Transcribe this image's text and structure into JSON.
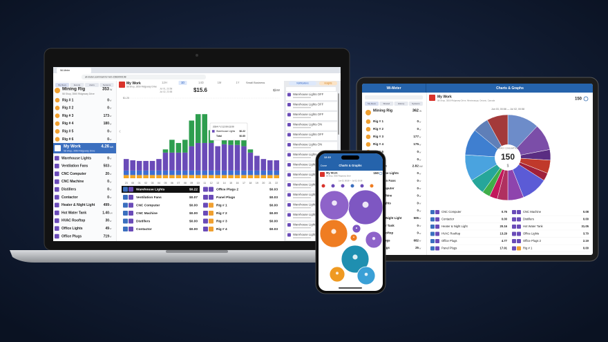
{
  "laptop": {
    "tab_title": "Wi-Meter",
    "url": "wi-meter.com/main?u=wm-1583090198",
    "nav": [
      "My Devs",
      "Events",
      "Alerts",
      "Systems"
    ],
    "rig": {
      "name": "Mining Rig",
      "address": "58 Shop, 3550 Ridgeway Drive",
      "value": "353",
      "unit": "W"
    },
    "rigs": [
      {
        "name": "Rig # 1",
        "value": "0",
        "unit": "W"
      },
      {
        "name": "Rig # 2",
        "value": "0",
        "unit": "W"
      },
      {
        "name": "Rig # 3",
        "value": "173",
        "unit": "W"
      },
      {
        "name": "Rig # 4",
        "value": "180",
        "unit": "W"
      },
      {
        "name": "Rig # 5",
        "value": "0",
        "unit": "W"
      },
      {
        "name": "Rig # 6",
        "value": "0",
        "unit": "W"
      }
    ],
    "site": {
      "name": "My Work",
      "address": "58 Shop, 3550 Ridgeway Drive",
      "value": "4.26",
      "unit": "kW"
    },
    "devices": [
      {
        "name": "Warehouse Lights",
        "value": "0",
        "unit": "W"
      },
      {
        "name": "Ventilation Fans",
        "value": "503",
        "unit": "W"
      },
      {
        "name": "CNC Computer",
        "value": "20",
        "unit": "W"
      },
      {
        "name": "CNC Machine",
        "value": "0",
        "unit": "W"
      },
      {
        "name": "Distillers",
        "value": "0",
        "unit": "W"
      },
      {
        "name": "Contactor",
        "value": "0",
        "unit": "W"
      },
      {
        "name": "Heater & Night Light",
        "value": "499",
        "unit": "W"
      },
      {
        "name": "Hot Water Tank",
        "value": "1.40",
        "unit": "kW"
      },
      {
        "name": "HVAC Rooftop",
        "value": "30",
        "unit": "W"
      },
      {
        "name": "Office Lights",
        "value": "49",
        "unit": "W"
      },
      {
        "name": "Office Plugs",
        "value": "719",
        "unit": "W"
      }
    ],
    "header": {
      "title": "My Work",
      "address": "58 Shop, 3550 Ridgeway Drive",
      "periods": [
        "12H",
        "1D",
        "14D",
        "1M",
        "1Y"
      ],
      "date_from": "Jul 01, 23:58",
      "date_to": "Jul 02, 23:58",
      "total": "$15.6",
      "units": "$|kW",
      "plan": "Small Business",
      "buttons": [
        "Notifications",
        "Insights"
      ]
    },
    "chart": {
      "type": "bar",
      "categories": [
        "23",
        "00",
        "01",
        "02",
        "03",
        "04",
        "05",
        "06",
        "07",
        "08",
        "09",
        "10",
        "11",
        "12",
        "13",
        "14",
        "15",
        "16",
        "17",
        "18",
        "19",
        "20",
        "21",
        "22"
      ],
      "ylim": [
        0,
        1.25
      ],
      "yticks": [
        {
          "value": 1.25,
          "label": "$1.25"
        }
      ],
      "series": [
        {
          "color": "#f5a623",
          "values": [
            0.05,
            0.05,
            0.05,
            0.05,
            0.05,
            0.05,
            0.05,
            0.05,
            0.05,
            0.05,
            0.05,
            0.05,
            0.05,
            0.05,
            0.05,
            0.05,
            0.05,
            0.05,
            0.05,
            0.05,
            0.05,
            0.05,
            0.05,
            0.05
          ]
        },
        {
          "color": "#3f6fd1",
          "values": [
            0.07,
            0.07,
            0.07,
            0.07,
            0.07,
            0.07,
            0.07,
            0.07,
            0.07,
            0.07,
            0.07,
            0.07,
            0.07,
            0.07,
            0.07,
            0.07,
            0.07,
            0.07,
            0.07,
            0.07,
            0.07,
            0.07,
            0.07,
            0.07
          ]
        },
        {
          "color": "#6a4bb8",
          "values": [
            0.18,
            0.16,
            0.15,
            0.15,
            0.15,
            0.18,
            0.28,
            0.28,
            0.28,
            0.28,
            0.38,
            0.43,
            0.43,
            0.43,
            0.38,
            0.41,
            0.4,
            0.4,
            0.38,
            0.28,
            0.23,
            0.18,
            0.16,
            0.16
          ]
        },
        {
          "color": "#2e9e4f",
          "values": [
            0,
            0,
            0,
            0,
            0,
            0,
            0.05,
            0.2,
            0.15,
            0.2,
            0.4,
            0.45,
            0.45,
            0.2,
            0,
            0.25,
            0.28,
            0.3,
            0.25,
            0.05,
            0,
            0,
            0,
            0
          ]
        }
      ]
    },
    "tooltip": {
      "time": "2024-7-2 12:00-13:00",
      "rows": [
        [
          "Warehouse Lights",
          "$0.22"
        ],
        [
          "Total",
          "$0.85"
        ]
      ]
    },
    "costs": [
      [
        "Warehouse Lights",
        "$0.22"
      ],
      [
        "Ventilation Fans",
        "$0.07"
      ],
      [
        "CNC Computer",
        "$0.00"
      ],
      [
        "CNC Machine",
        "$0.00"
      ],
      [
        "Distillers",
        "$0.00"
      ],
      [
        "Contactor",
        "$0.00"
      ],
      [
        "Office Plugs 2",
        "$0.03"
      ],
      [
        "Panel Plugs",
        "$0.03"
      ],
      [
        "Rig # 1",
        "$0.00"
      ],
      [
        "Rig # 2",
        "$0.00"
      ],
      [
        "Rig # 3",
        "$0.00"
      ],
      [
        "Rig # 4",
        "$0.03"
      ]
    ],
    "events": [
      "Warehouse Lights OFF",
      "Warehouse Lights OFF",
      "Warehouse Lights OFF",
      "Warehouse Lights ON",
      "Warehouse Lights OFF",
      "Warehouse Lights ON",
      "Warehouse Lights OFF",
      "Warehouse Lights OFF",
      "Warehouse Lights OFF",
      "Warehouse Lights OFF",
      "Warehouse Lights OFF",
      "Warehouse Lights OFF",
      "Warehouse Lights OFF",
      "Warehouse Lights OFF",
      "Warehouse Lights OFF"
    ]
  },
  "tablet": {
    "app_title": "Wi-Meter",
    "screen_title": "Charts & Graphs",
    "nav": [
      "My Devs",
      "Shared",
      "History",
      "Systems"
    ],
    "rig": {
      "name": "Mining Rig",
      "value": "362",
      "unit": "W"
    },
    "rigs": [
      {
        "name": "Rig # 1",
        "value": "0",
        "unit": "W"
      },
      {
        "name": "Rig # 2",
        "value": "0",
        "unit": "W"
      },
      {
        "name": "Rig # 3",
        "value": "177",
        "unit": "W"
      },
      {
        "name": "Rig # 4",
        "value": "175",
        "unit": "W"
      },
      {
        "name": "Rig # 5",
        "value": "0",
        "unit": "W"
      },
      {
        "name": "Rig # 6",
        "value": "0",
        "unit": "W"
      }
    ],
    "site": {
      "name": "My Work",
      "value": "2.82",
      "unit": "kW"
    },
    "devices": [
      {
        "name": "Warehouse Lights",
        "value": "0",
        "unit": "W"
      },
      {
        "name": "Ventilation Fans",
        "value": "0",
        "unit": "W"
      },
      {
        "name": "CNC Computer",
        "value": "0",
        "unit": "W"
      },
      {
        "name": "CNC Machine",
        "value": "0",
        "unit": "W"
      },
      {
        "name": "Office Lights",
        "value": "0",
        "unit": "W"
      },
      {
        "name": "Distillers",
        "value": "0",
        "unit": "W"
      },
      {
        "name": "Heater & Night Light",
        "value": "505",
        "unit": "W"
      },
      {
        "name": "Hot Water Tank",
        "value": "0",
        "unit": "W"
      },
      {
        "name": "HVAC Rooftop",
        "value": "0",
        "unit": "W"
      },
      {
        "name": "Office Plugs",
        "value": "682",
        "unit": "W"
      },
      {
        "name": "Panel Plugs",
        "value": "25",
        "unit": "W"
      }
    ],
    "header": {
      "title": "My Work",
      "address": "58 Shop, 3550 Ridgeway Drive, Mississauga, Ontario, Canada",
      "value": "150"
    },
    "pie": {
      "type": "pie",
      "date_range": "Jun 03, 00:58 — Jul 02, 00:58",
      "center_label": "ENERGY CONSUMPTION",
      "center_value": "150",
      "center_unit": "$",
      "values": [
        12,
        10,
        4,
        5,
        3,
        10,
        6,
        4,
        3,
        3,
        6,
        10,
        10,
        6,
        8
      ],
      "colors": [
        "#6d8cc9",
        "#7b4ea8",
        "#5a2d82",
        "#c0392b",
        "#a0203a",
        "#5b5bd6",
        "#8e44ad",
        "#b03060",
        "#c2185b",
        "#3fae49",
        "#26a69a",
        "#4aa3df",
        "#3f7fd0",
        "#5f7fb8",
        "#a33a3a"
      ]
    },
    "costs": [
      [
        "CNC Computer",
        "0.76"
      ],
      [
        "CNC Machine",
        "0.08"
      ],
      [
        "Contactor",
        "0.00"
      ],
      [
        "Distillers",
        "0.00"
      ],
      [
        "Heater & Night Light",
        "20.16"
      ],
      [
        "Hot Water Tank",
        "31.05"
      ],
      [
        "HVAC Rooftop",
        "13.29"
      ],
      [
        "Office Lights",
        "3.70"
      ],
      [
        "Office Plugs",
        "4.77"
      ],
      [
        "Office Plugs 2",
        "2.19"
      ],
      [
        "Panel Plugs",
        "17.91"
      ],
      [
        "Rig # 1",
        "0.00"
      ]
    ]
  },
  "phone": {
    "time": "12:10",
    "done": "Done",
    "title": "Charts & Graphs",
    "site": "My Work",
    "address": "58 Shop, 3550 Ridgeway Drive",
    "value": "150",
    "date_range": "Jun 03, 00:58 — Jul 02, 00:58"
  }
}
